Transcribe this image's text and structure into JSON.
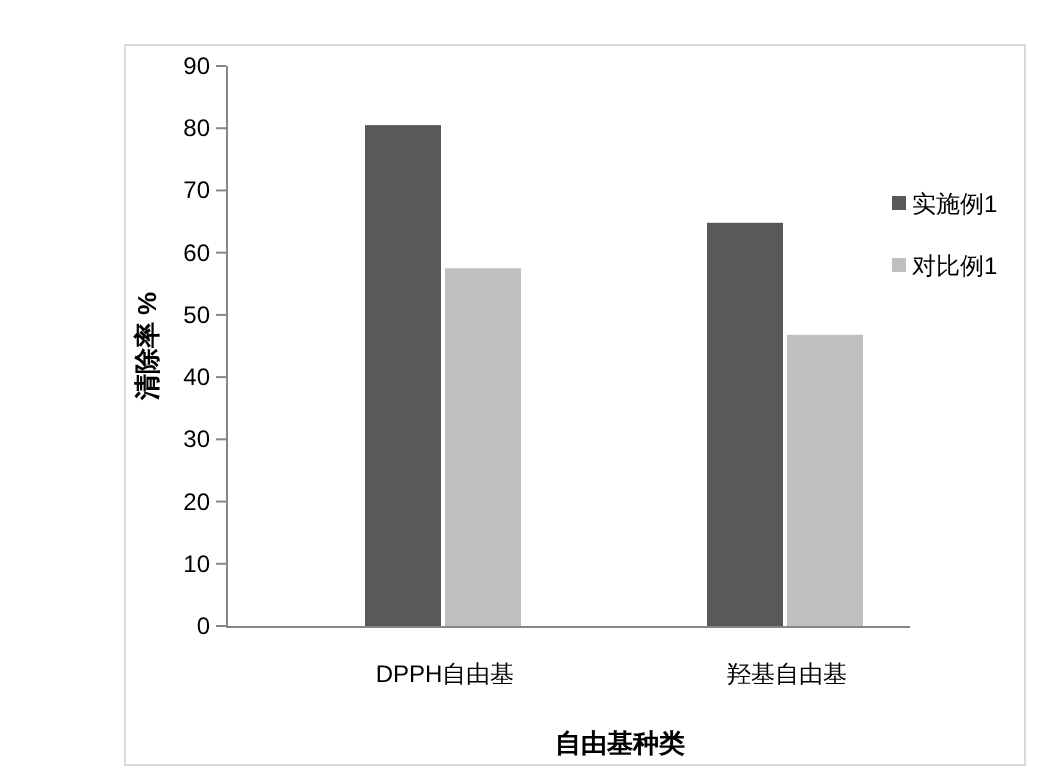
{
  "chart_data": {
    "type": "bar",
    "xlabel": "自由基种类",
    "ylabel": "清除率 %",
    "categories": [
      "DPPH自由基",
      "羟基自由基"
    ],
    "series": [
      {
        "name": "实施例1",
        "color": "#595959",
        "values": [
          80.5,
          64.8
        ]
      },
      {
        "name": "对比例1",
        "color": "#bfbfbf",
        "values": [
          57.5,
          46.8
        ]
      }
    ],
    "ylim": [
      0,
      90
    ],
    "yticks": [
      0,
      10,
      20,
      30,
      40,
      50,
      60,
      70,
      80,
      90
    ],
    "grid": false,
    "legend": "right"
  }
}
